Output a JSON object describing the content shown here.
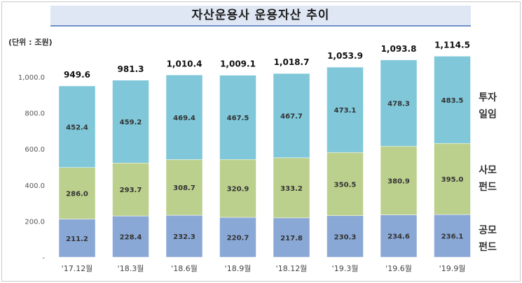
{
  "title": "자산운용사 운용자산 추이",
  "unit_label": "(단위 : 조원)",
  "chart_data": {
    "type": "bar",
    "stacked": true,
    "categories": [
      "'17.12월",
      "'18.3월",
      "'18.6월",
      "'18.9월",
      "'18.12월",
      "'19.3월",
      "'19.6월",
      "'19.9월"
    ],
    "series": [
      {
        "name": "공모 펀드",
        "color": "#8aa8d6",
        "values": [
          211.2,
          228.4,
          232.3,
          220.7,
          217.8,
          230.3,
          234.6,
          236.1
        ]
      },
      {
        "name": "사모 펀드",
        "color": "#bcd08d",
        "values": [
          286.0,
          293.7,
          308.7,
          320.9,
          333.2,
          350.5,
          380.9,
          395.0
        ]
      },
      {
        "name": "투자 일임",
        "color": "#7fc7d9",
        "values": [
          452.4,
          459.2,
          469.4,
          467.5,
          467.7,
          473.1,
          478.3,
          483.5
        ]
      }
    ],
    "totals": [
      949.6,
      981.3,
      1010.4,
      1009.1,
      1018.7,
      1053.9,
      1093.8,
      1114.5
    ],
    "yticks": [
      "-",
      "200.0",
      "400.0",
      "600.0",
      "800.0",
      "1,000.0"
    ],
    "ylim": [
      0,
      1200
    ],
    "legend_placement": "right",
    "grid": false
  }
}
